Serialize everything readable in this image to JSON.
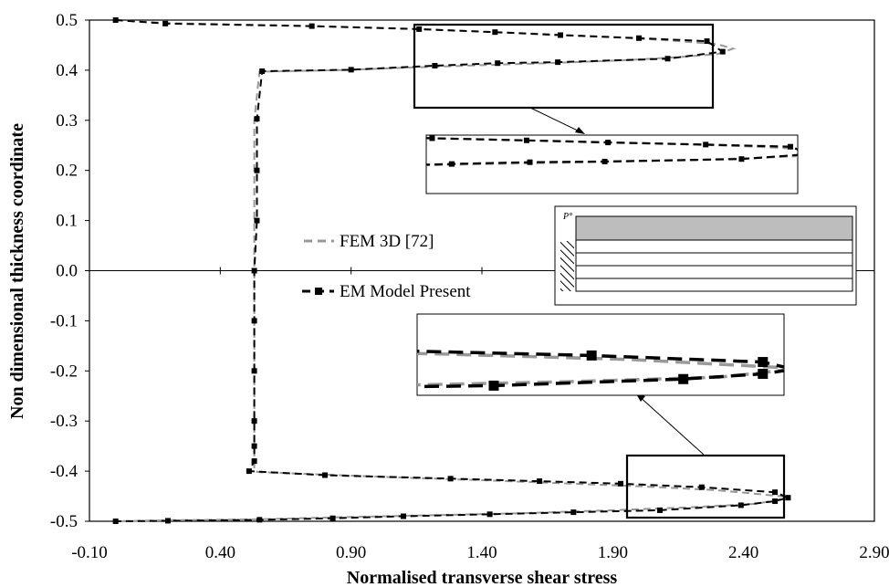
{
  "chart_data": {
    "type": "line",
    "title": "",
    "xlabel": "Normalised transverse shear stress",
    "ylabel": "Non dimensional thickness coordinate",
    "xlim": [
      -0.1,
      2.9
    ],
    "ylim": [
      -0.5,
      0.5
    ],
    "x_tick_labels": [
      "-0.10",
      "0.40",
      "0.90",
      "1.40",
      "1.90",
      "2.40",
      "2.90"
    ],
    "y_tick_labels": [
      "0.5",
      "0.4",
      "0.3",
      "0.2",
      "0.1",
      "0.0",
      "-0.1",
      "-0.2",
      "-0.3",
      "-0.4",
      "-0.5"
    ],
    "grid": false,
    "legend_position": "center-left",
    "series": [
      {
        "name": "FEM 3D [72]",
        "color": "#999999",
        "style": "dashed",
        "markers": false,
        "x": [
          0.0,
          0.2,
          0.75,
          1.05,
          1.35,
          1.65,
          1.9,
          2.1,
          2.3,
          2.36,
          2.3,
          2.15,
          1.95,
          1.7,
          1.4,
          1.1,
          0.85,
          0.55,
          0.53,
          0.53,
          0.53,
          0.53,
          0.53,
          0.53,
          0.53,
          0.53,
          0.53,
          0.53,
          0.53,
          0.55,
          0.8,
          1.1,
          1.4,
          1.7,
          2.0,
          2.3,
          2.58,
          2.45,
          2.2,
          1.9,
          1.55,
          1.2,
          0.85,
          0.55,
          0.2,
          0.0
        ],
        "y": [
          0.5,
          0.494,
          0.488,
          0.484,
          0.478,
          0.472,
          0.466,
          0.46,
          0.452,
          0.443,
          0.432,
          0.426,
          0.42,
          0.415,
          0.41,
          0.405,
          0.4,
          0.397,
          0.3,
          0.2,
          0.1,
          0.0,
          -0.1,
          -0.2,
          -0.3,
          -0.35,
          -0.37,
          -0.39,
          -0.4,
          -0.402,
          -0.407,
          -0.413,
          -0.418,
          -0.424,
          -0.43,
          -0.438,
          -0.452,
          -0.465,
          -0.472,
          -0.478,
          -0.484,
          -0.488,
          -0.492,
          -0.496,
          -0.498,
          -0.5
        ]
      },
      {
        "name": "EM Model Present",
        "color": "#000000",
        "style": "dashed",
        "markers": true,
        "x": [
          0.0,
          0.19,
          0.75,
          1.16,
          1.45,
          1.7,
          2.0,
          2.26,
          2.32,
          2.11,
          1.69,
          1.46,
          1.22,
          0.9,
          0.56,
          0.54,
          0.54,
          0.54,
          0.53,
          0.53,
          0.53,
          0.53,
          0.53,
          0.53,
          0.51,
          0.8,
          1.28,
          1.62,
          1.93,
          2.24,
          2.52,
          2.57,
          2.52,
          2.39,
          2.08,
          1.75,
          1.43,
          1.1,
          0.83,
          0.55,
          0.2,
          0.0
        ],
        "y": [
          0.5,
          0.493,
          0.488,
          0.482,
          0.476,
          0.47,
          0.464,
          0.458,
          0.437,
          0.423,
          0.416,
          0.414,
          0.409,
          0.401,
          0.398,
          0.303,
          0.2,
          0.1,
          0.0,
          -0.1,
          -0.2,
          -0.3,
          -0.35,
          -0.38,
          -0.4,
          -0.408,
          -0.415,
          -0.42,
          -0.425,
          -0.432,
          -0.442,
          -0.453,
          -0.46,
          -0.468,
          -0.478,
          -0.482,
          -0.486,
          -0.49,
          -0.494,
          -0.497,
          -0.499,
          -0.5
        ]
      }
    ]
  },
  "legend": [
    {
      "label": "FEM 3D [72]",
      "color": "#999999"
    },
    {
      "label": "EM Model Present",
      "color": "#000000"
    }
  ],
  "inset_diagram": {
    "load_label": "P°"
  }
}
